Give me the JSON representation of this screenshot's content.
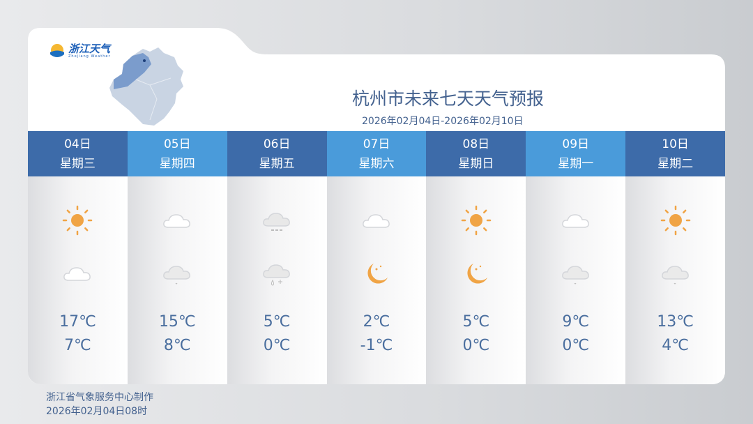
{
  "logo": {
    "text": "浙江天气",
    "sub": "Zhejiang Weather"
  },
  "title": "杭州市未来七天天气预报",
  "date_range": "2026年02月04日-2026年02月10日",
  "colors": {
    "header_dark": "#3d6ba9",
    "header_light": "#4a9bda",
    "text": "#44628f",
    "sun": "#f0a445"
  },
  "days": [
    {
      "date": "04日",
      "weekday": "星期三",
      "day_icon": "sunny",
      "night_icon": "cloudy",
      "high": "17℃",
      "low": "7℃"
    },
    {
      "date": "05日",
      "weekday": "星期四",
      "day_icon": "cloudy",
      "night_icon": "light-rain",
      "high": "15℃",
      "low": "8℃"
    },
    {
      "date": "06日",
      "weekday": "星期五",
      "day_icon": "light-snow",
      "night_icon": "sleet",
      "high": "5℃",
      "low": "0℃"
    },
    {
      "date": "07日",
      "weekday": "星期六",
      "day_icon": "cloudy",
      "night_icon": "moon",
      "high": "2℃",
      "low": "-1℃"
    },
    {
      "date": "08日",
      "weekday": "星期日",
      "day_icon": "sunny",
      "night_icon": "moon",
      "high": "5℃",
      "low": "0℃"
    },
    {
      "date": "09日",
      "weekday": "星期一",
      "day_icon": "cloudy",
      "night_icon": "light-rain",
      "high": "9℃",
      "low": "0℃"
    },
    {
      "date": "10日",
      "weekday": "星期二",
      "day_icon": "sunny",
      "night_icon": "light-rain",
      "high": "13℃",
      "low": "4℃"
    }
  ],
  "footer": {
    "producer": "浙江省气象服务中心制作",
    "issued": "2026年02月04日08时"
  }
}
